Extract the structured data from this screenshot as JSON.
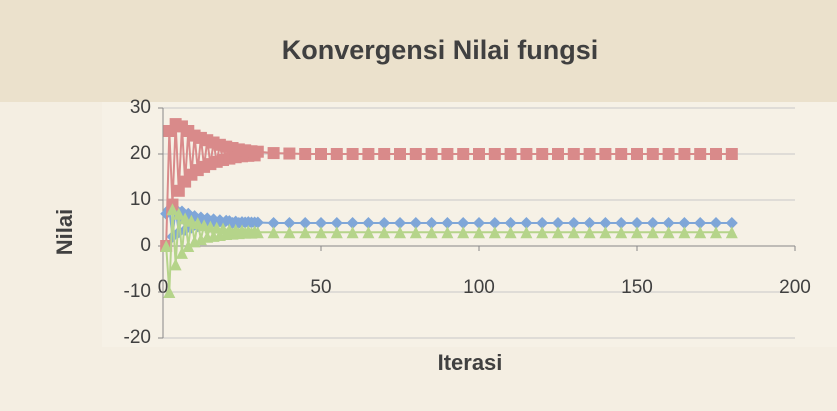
{
  "chart_data": {
    "type": "scatter",
    "title": "Konvergensi Nilai fungsi",
    "xlabel": "Iterasi",
    "ylabel": "Nilai",
    "x": [
      1,
      2,
      3,
      4,
      5,
      6,
      7,
      8,
      9,
      10,
      11,
      12,
      13,
      14,
      15,
      16,
      17,
      18,
      19,
      20,
      21,
      22,
      23,
      24,
      25,
      26,
      27,
      28,
      29,
      30,
      35,
      40,
      45,
      50,
      55,
      60,
      65,
      70,
      75,
      80,
      85,
      90,
      95,
      100,
      105,
      110,
      115,
      120,
      125,
      130,
      135,
      140,
      145,
      150,
      155,
      160,
      165,
      170,
      175,
      180
    ],
    "series": [
      {
        "color": "#7fa6d8",
        "marker": "diamond",
        "values": [
          7,
          8,
          2,
          8,
          3,
          7.5,
          3.5,
          7,
          4,
          6.5,
          4.3,
          6.2,
          4.5,
          6,
          4.7,
          5.8,
          4.8,
          5.6,
          4.9,
          5.5,
          5.4,
          5,
          5.3,
          5,
          5.2,
          5.1,
          5.2,
          5.1,
          5.1,
          5.1,
          5,
          5,
          5,
          5,
          5,
          5,
          5,
          5,
          5,
          5,
          5,
          5,
          5,
          5,
          5,
          5,
          5,
          5,
          5,
          5,
          5,
          5,
          5,
          5,
          5,
          5,
          5,
          5,
          5,
          5
        ]
      },
      {
        "color": "#d98a8a",
        "marker": "square",
        "values": [
          0,
          25,
          9,
          26.5,
          12,
          26,
          14,
          25,
          15.5,
          24,
          16.5,
          23.5,
          17.2,
          23,
          17.8,
          22.5,
          18.3,
          22,
          18.7,
          21.6,
          19,
          21.3,
          19.3,
          21,
          19.5,
          20.8,
          19.6,
          20.6,
          19.7,
          20.5,
          20.2,
          20.1,
          20,
          20,
          20,
          20,
          20,
          20,
          20,
          20,
          20,
          20,
          20,
          20,
          20,
          20,
          20,
          20,
          20,
          20,
          20,
          20,
          20,
          20,
          20,
          20,
          20,
          20,
          20,
          20
        ]
      },
      {
        "color": "#b5d48a",
        "marker": "triangle",
        "values": [
          0,
          -10,
          8,
          -4,
          7,
          -1.5,
          6,
          0,
          5.5,
          1,
          5,
          1.5,
          4.5,
          2,
          4.2,
          2.2,
          4,
          2.4,
          3.8,
          2.6,
          3.6,
          2.7,
          3.5,
          2.8,
          3.4,
          2.9,
          3.3,
          2.9,
          3.2,
          3,
          3,
          3,
          3,
          3,
          3,
          3,
          3,
          3,
          3,
          3,
          3,
          3,
          3,
          3,
          3,
          3,
          3,
          3,
          3,
          3,
          3,
          3,
          3,
          3,
          3,
          3,
          3,
          3,
          3,
          3
        ]
      }
    ],
    "xlim": [
      0,
      200
    ],
    "xticks": [
      0,
      50,
      100,
      150,
      200
    ],
    "ylim": [
      -20,
      30
    ],
    "yticks": [
      -20,
      -10,
      0,
      10,
      20,
      30
    ],
    "grid": true
  }
}
